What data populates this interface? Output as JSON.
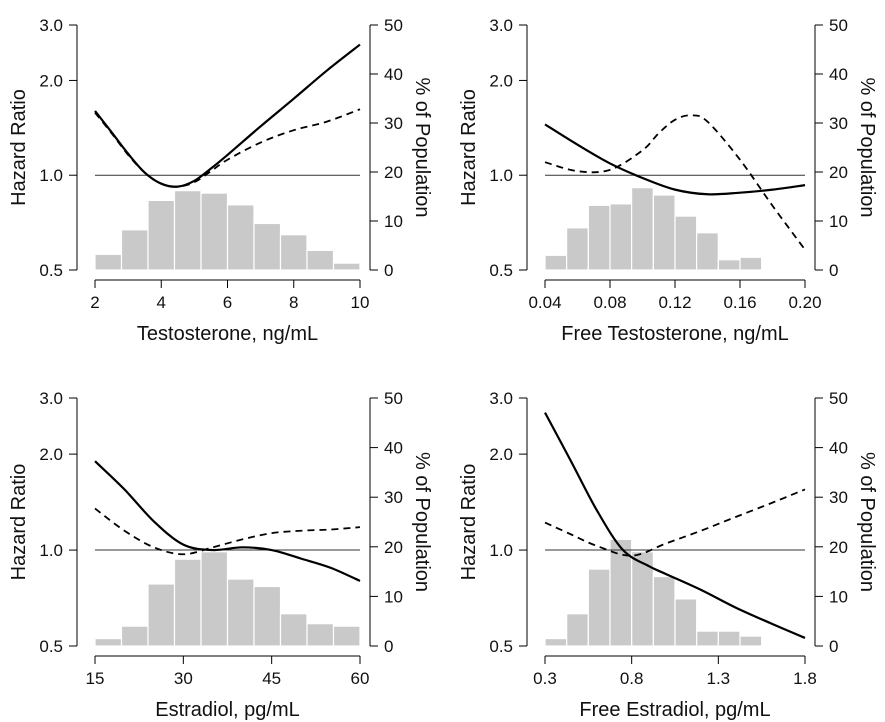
{
  "chart_data": [
    {
      "type": "line",
      "xlabel": "Testosterone, ng/mL",
      "ylabel": "Hazard Ratio",
      "y2label": "% of Population",
      "xlim": [
        2,
        10
      ],
      "xticks": [
        2,
        4,
        6,
        8,
        10
      ],
      "ylim": [
        0.5,
        3.0
      ],
      "yscale": "log",
      "yticks": [
        "0.5",
        "1.0",
        "2.0",
        "3.0"
      ],
      "y2lim": [
        0,
        50
      ],
      "y2ticks": [
        0,
        10,
        20,
        30,
        40,
        50
      ],
      "reference_line": 1.0,
      "histogram": {
        "bin_width": 0.8,
        "bins": [
          2.0,
          2.8,
          3.6,
          4.4,
          5.2,
          6.0,
          6.8,
          7.6,
          8.4,
          9.2
        ],
        "values": [
          3.2,
          8.2,
          14.2,
          16.2,
          15.7,
          13.3,
          9.5,
          7.2,
          4.0,
          1.4
        ]
      },
      "series": [
        {
          "style": "solid",
          "x": [
            2,
            2.5,
            3,
            3.5,
            4,
            4.5,
            5,
            5.5,
            6,
            7,
            8,
            9,
            10
          ],
          "y": [
            1.6,
            1.37,
            1.17,
            1.02,
            0.94,
            0.92,
            0.96,
            1.05,
            1.16,
            1.43,
            1.75,
            2.15,
            2.6
          ]
        },
        {
          "style": "dashed",
          "x": [
            2,
            2.5,
            3,
            3.5,
            4,
            4.5,
            5,
            5.5,
            6,
            7,
            8,
            9,
            10
          ],
          "y": [
            1.58,
            1.36,
            1.16,
            1.02,
            0.94,
            0.92,
            0.95,
            1.03,
            1.12,
            1.27,
            1.39,
            1.48,
            1.62
          ]
        }
      ]
    },
    {
      "type": "line",
      "xlabel": "Free Testosterone, ng/mL",
      "ylabel": "Hazard Ratio",
      "y2label": "% of Population",
      "xlim": [
        0.04,
        0.2
      ],
      "xticks": [
        "0.04",
        "0.08",
        "0.12",
        "0.16",
        "0.20"
      ],
      "ylim": [
        0.5,
        3.0
      ],
      "yscale": "log",
      "yticks": [
        "0.5",
        "1.0",
        "2.0",
        "3.0"
      ],
      "y2lim": [
        0,
        50
      ],
      "y2ticks": [
        0,
        10,
        20,
        30,
        40,
        50
      ],
      "reference_line": 1.0,
      "histogram": {
        "bin_width": 0.01333,
        "bins": [
          0.04,
          0.0533,
          0.0667,
          0.08,
          0.0933,
          0.1067,
          0.12,
          0.1333,
          0.1467,
          0.16,
          0.1733,
          0.1867
        ],
        "values": [
          3.0,
          8.6,
          13.2,
          13.5,
          16.8,
          15.3,
          11.0,
          7.6,
          2.1,
          2.6,
          0,
          0
        ]
      },
      "series": [
        {
          "style": "solid",
          "x": [
            0.04,
            0.06,
            0.08,
            0.1,
            0.12,
            0.14,
            0.16,
            0.18,
            0.2
          ],
          "y": [
            1.45,
            1.25,
            1.09,
            0.98,
            0.9,
            0.87,
            0.88,
            0.9,
            0.93
          ]
        },
        {
          "style": "dashed",
          "x": [
            0.04,
            0.06,
            0.08,
            0.1,
            0.11,
            0.12,
            0.13,
            0.14,
            0.16,
            0.18,
            0.2
          ],
          "y": [
            1.1,
            1.03,
            1.04,
            1.2,
            1.36,
            1.5,
            1.55,
            1.48,
            1.12,
            0.8,
            0.58
          ]
        }
      ]
    },
    {
      "type": "line",
      "xlabel": "Estradiol, pg/mL",
      "ylabel": "Hazard Ratio",
      "y2label": "% of Population",
      "xlim": [
        15,
        60
      ],
      "xticks": [
        15,
        30,
        45,
        60
      ],
      "ylim": [
        0.5,
        3.0
      ],
      "yscale": "log",
      "yticks": [
        "0.5",
        "1.0",
        "2.0",
        "3.0"
      ],
      "y2lim": [
        0,
        50
      ],
      "y2ticks": [
        0,
        10,
        20,
        30,
        40,
        50
      ],
      "reference_line": 1.0,
      "histogram": {
        "bin_width": 4.5,
        "bins": [
          15,
          19.5,
          24,
          28.5,
          33,
          37.5,
          42,
          46.5,
          51,
          55.5
        ],
        "values": [
          1.5,
          4.0,
          12.5,
          17.5,
          19.0,
          13.5,
          12.0,
          6.5,
          4.5,
          4.0
        ]
      },
      "series": [
        {
          "style": "solid",
          "x": [
            15,
            20,
            25,
            30,
            35,
            40,
            45,
            50,
            55,
            60
          ],
          "y": [
            1.9,
            1.55,
            1.23,
            1.04,
            1.0,
            1.02,
            1.0,
            0.94,
            0.88,
            0.8
          ]
        },
        {
          "style": "dashed",
          "x": [
            15,
            20,
            25,
            30,
            35,
            40,
            45,
            50,
            55,
            60
          ],
          "y": [
            1.35,
            1.15,
            1.02,
            0.97,
            1.02,
            1.08,
            1.13,
            1.15,
            1.16,
            1.18
          ]
        }
      ]
    },
    {
      "type": "line",
      "xlabel": "Free Estradiol, pg/mL",
      "ylabel": "Hazard Ratio",
      "y2label": "% of Population",
      "xlim": [
        0.3,
        1.8
      ],
      "xticks": [
        "0.3",
        "0.8",
        "1.3",
        "1.8"
      ],
      "ylim": [
        0.5,
        3.0
      ],
      "yscale": "log",
      "yticks": [
        "0.5",
        "1.0",
        "2.0",
        "3.0"
      ],
      "y2lim": [
        0,
        50
      ],
      "y2ticks": [
        0,
        10,
        20,
        30,
        40,
        50
      ],
      "reference_line": 1.0,
      "histogram": {
        "bin_width": 0.125,
        "bins": [
          0.3,
          0.425,
          0.55,
          0.675,
          0.8,
          0.925,
          1.05,
          1.175,
          1.3,
          1.425,
          1.55,
          1.675
        ],
        "values": [
          1.5,
          6.5,
          15.5,
          21.5,
          19.0,
          14.0,
          9.5,
          3.0,
          3.0,
          2.0,
          0,
          0
        ]
      },
      "series": [
        {
          "style": "solid",
          "x": [
            0.3,
            0.45,
            0.6,
            0.75,
            0.9,
            1.0,
            1.2,
            1.4,
            1.6,
            1.8
          ],
          "y": [
            2.7,
            1.9,
            1.33,
            1.0,
            0.89,
            0.84,
            0.75,
            0.66,
            0.59,
            0.53
          ]
        },
        {
          "style": "dashed",
          "x": [
            0.3,
            0.45,
            0.6,
            0.8,
            1.0,
            1.2,
            1.4,
            1.6,
            1.8
          ],
          "y": [
            1.22,
            1.12,
            1.03,
            0.96,
            1.05,
            1.15,
            1.27,
            1.4,
            1.55
          ]
        }
      ]
    }
  ]
}
